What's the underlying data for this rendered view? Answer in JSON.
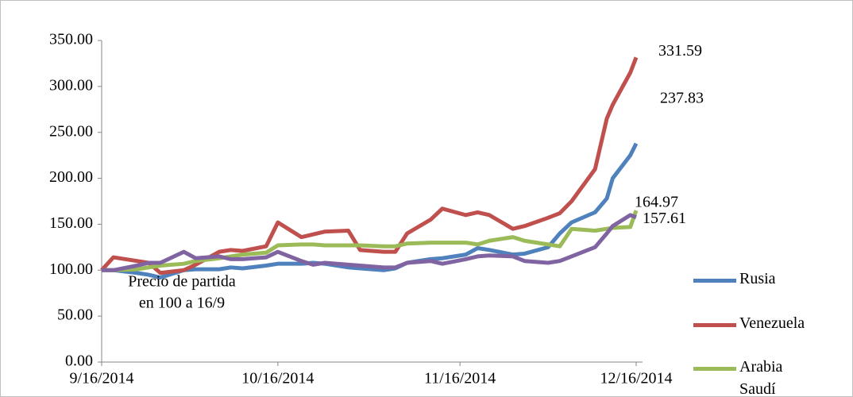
{
  "chart_data": {
    "type": "line",
    "x": [
      "9/16/2014",
      "9/18/2014",
      "9/22/2014",
      "9/24/2014",
      "9/26/2014",
      "9/30/2014",
      "10/2/2014",
      "10/6/2014",
      "10/8/2014",
      "10/10/2014",
      "10/14/2014",
      "10/16/2014",
      "10/20/2014",
      "10/22/2014",
      "10/24/2014",
      "10/28/2014",
      "10/30/2014",
      "11/3/2014",
      "11/5/2014",
      "11/7/2014",
      "11/11/2014",
      "11/13/2014",
      "11/17/2014",
      "11/19/2014",
      "11/21/2014",
      "11/25/2014",
      "11/27/2014",
      "12/1/2014",
      "12/3/2014",
      "12/5/2014",
      "12/9/2014",
      "12/11/2014",
      "12/12/2014",
      "12/15/2014",
      "12/16/2014"
    ],
    "series": [
      {
        "name": "Rusia",
        "color": "#4f81bd",
        "values": [
          100,
          100,
          97,
          95,
          92,
          100,
          101,
          101,
          103,
          102,
          105,
          107,
          107,
          108,
          107,
          103,
          102,
          100,
          102,
          108,
          112,
          113,
          117,
          124,
          122,
          117,
          118,
          125,
          140,
          152,
          163,
          178,
          200,
          225,
          237.83
        ]
      },
      {
        "name": "Venezuela",
        "color": "#c0504d",
        "values": [
          100,
          114,
          110,
          108,
          97,
          100,
          106,
          120,
          122,
          121,
          126,
          152,
          136,
          139,
          142,
          143,
          122,
          120,
          120,
          140,
          155,
          167,
          160,
          163,
          160,
          145,
          148,
          157,
          162,
          175,
          210,
          265,
          280,
          315,
          331.59
        ]
      },
      {
        "name": "Arabia Saudí",
        "color": "#9bbb59",
        "values": [
          100,
          100,
          101,
          103,
          105,
          107,
          110,
          113,
          115,
          117,
          119,
          127,
          128,
          128,
          127,
          127,
          127,
          126,
          126,
          129,
          130,
          130,
          130,
          128,
          132,
          136,
          132,
          128,
          126,
          145,
          143,
          145,
          146,
          147,
          164.97
        ]
      },
      {
        "color": "#8064a2",
        "values": [
          100,
          100,
          105,
          108,
          108,
          120,
          113,
          115,
          112,
          112,
          114,
          120,
          110,
          106,
          108,
          106,
          105,
          103,
          103,
          108,
          110,
          107,
          112,
          115,
          116,
          115,
          110,
          108,
          110,
          115,
          125,
          140,
          148,
          160,
          157.61
        ]
      }
    ],
    "xlim": [
      "9/16/2014",
      "12/16/2014"
    ],
    "xticks": [
      "9/16/2014",
      "10/16/2014",
      "11/16/2014",
      "12/16/2014"
    ],
    "ylim": [
      0,
      350
    ],
    "yticks": [
      {
        "value": 0,
        "label": "0.00"
      },
      {
        "value": 50,
        "label": "50.00"
      },
      {
        "value": 100,
        "label": "100.00"
      },
      {
        "value": 150,
        "label": "150.00"
      },
      {
        "value": 200,
        "label": "200.00"
      },
      {
        "value": 250,
        "label": "250.00"
      },
      {
        "value": 300,
        "label": "300.00"
      },
      {
        "value": 350,
        "label": "350.00"
      }
    ],
    "annotation": [
      "Precio de partida",
      "en 100 a 16/9"
    ],
    "legend": "right"
  }
}
